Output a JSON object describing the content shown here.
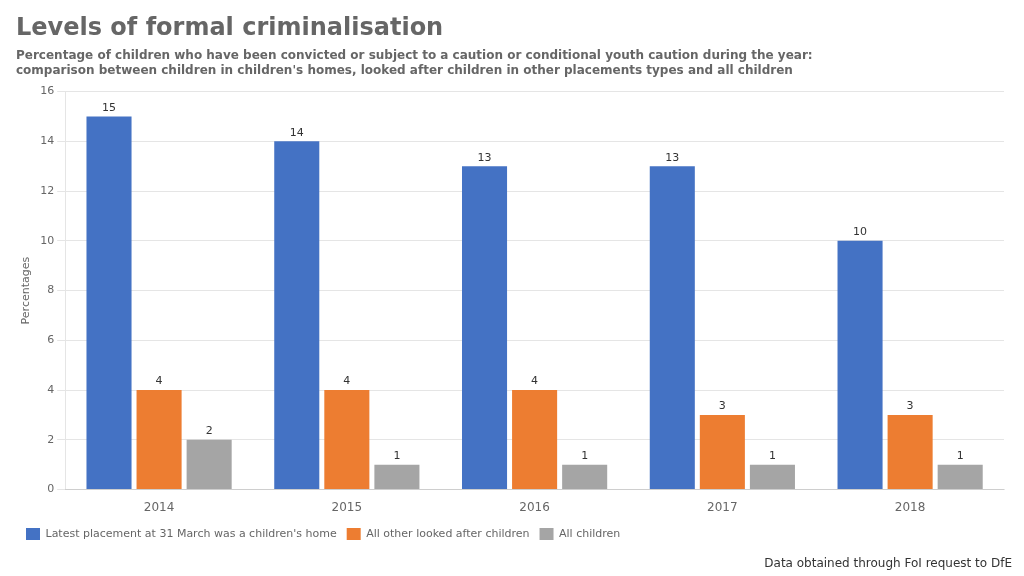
{
  "chart_data": {
    "type": "bar",
    "title": "Levels of formal criminalisation",
    "subtitle": [
      "Percentage of children who have been convicted or subject to a caution or conditional youth caution during the year:",
      "comparison between children in children's homes, looked after children in other placements types and all children"
    ],
    "categories": [
      "2014",
      "2015",
      "2016",
      "2017",
      "2018"
    ],
    "series": [
      {
        "name": "Latest placement at 31 March was a children's home",
        "color": "#4472C4",
        "values": [
          15,
          14,
          13,
          13,
          10
        ]
      },
      {
        "name": "All other looked after children",
        "color": "#ED7D31",
        "values": [
          4,
          4,
          4,
          3,
          3
        ]
      },
      {
        "name": "All children",
        "color": "#A5A5A5",
        "values": [
          2,
          1,
          1,
          1,
          1
        ]
      }
    ],
    "y_label": "Percentages",
    "ylim": [
      0,
      16
    ],
    "yticks": [
      0,
      2,
      4,
      6,
      8,
      10,
      12,
      14,
      16
    ],
    "grid": true,
    "legend": "bottom",
    "data_labels": true,
    "annotations": [
      "Data obtained through FoI request to DfE"
    ]
  }
}
